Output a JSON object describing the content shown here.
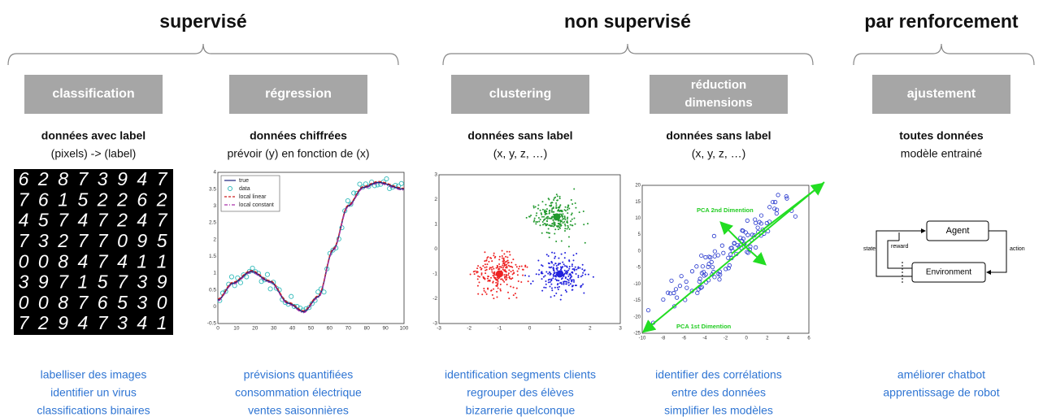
{
  "sections": [
    {
      "title": "supervisé"
    },
    {
      "title": "non supervisé"
    },
    {
      "title": "par renforcement"
    }
  ],
  "columns": [
    {
      "label": "classification",
      "heading": "données avec label",
      "detail": "(pixels) -> (label)",
      "uses": [
        "labelliser des images",
        "identifier un virus",
        "classifications binaires"
      ]
    },
    {
      "label": "régression",
      "heading": "données chiffrées",
      "detail": "prévoir (y) en fonction de (x)",
      "uses": [
        "prévisions quantifiées",
        "consommation électrique",
        "ventes saisonnières"
      ]
    },
    {
      "label": "clustering",
      "heading": "données sans label",
      "detail": "(x, y, z, …)",
      "uses": [
        "identification segments clients",
        "regrouper des élèves",
        "bizarrerie quelconque"
      ]
    },
    {
      "label": [
        "réduction",
        "dimensions"
      ],
      "heading": "données sans label",
      "detail": "(x, y, z, …)",
      "uses": [
        "identifier des corrélations",
        "entre des données",
        "simplifier les modèles"
      ]
    },
    {
      "label": "ajustement",
      "heading": "toutes données",
      "detail": "modèle entrainé",
      "uses": [
        "améliorer chatbot",
        "apprentissage de robot"
      ]
    }
  ],
  "mnist": [
    "62873947",
    "76152262",
    "45747247",
    "73277095",
    "00847411",
    "39715739",
    "00876530",
    "72947341"
  ],
  "regression_plot": {
    "legend": [
      "true",
      "data",
      "local linear",
      "local constant"
    ],
    "xticks": [
      0,
      10,
      20,
      30,
      40,
      50,
      60,
      70,
      80,
      90,
      100
    ],
    "yticks": [
      -0.5,
      0,
      0.5,
      1,
      1.5,
      2,
      2.5,
      3,
      3.5,
      4
    ]
  },
  "cluster_plot": {
    "xticks": [
      -3,
      -2,
      -1,
      0,
      1,
      2,
      3
    ],
    "yticks": [
      -3,
      -2,
      -1,
      0,
      1,
      2,
      3
    ]
  },
  "pca_plot": {
    "label_2nd": "PCA 2nd Dimention",
    "label_1st": "PCA 1st Dimention",
    "xticks": [
      -10,
      -8,
      -6,
      -4,
      -2,
      0,
      2,
      4,
      6
    ],
    "yticks": [
      -25,
      -20,
      -15,
      -10,
      -5,
      0,
      5,
      10,
      15,
      20
    ]
  },
  "rl_diagram": {
    "agent": "Agent",
    "environment": "Environment",
    "state": "state",
    "reward": "reward",
    "action": "action"
  }
}
